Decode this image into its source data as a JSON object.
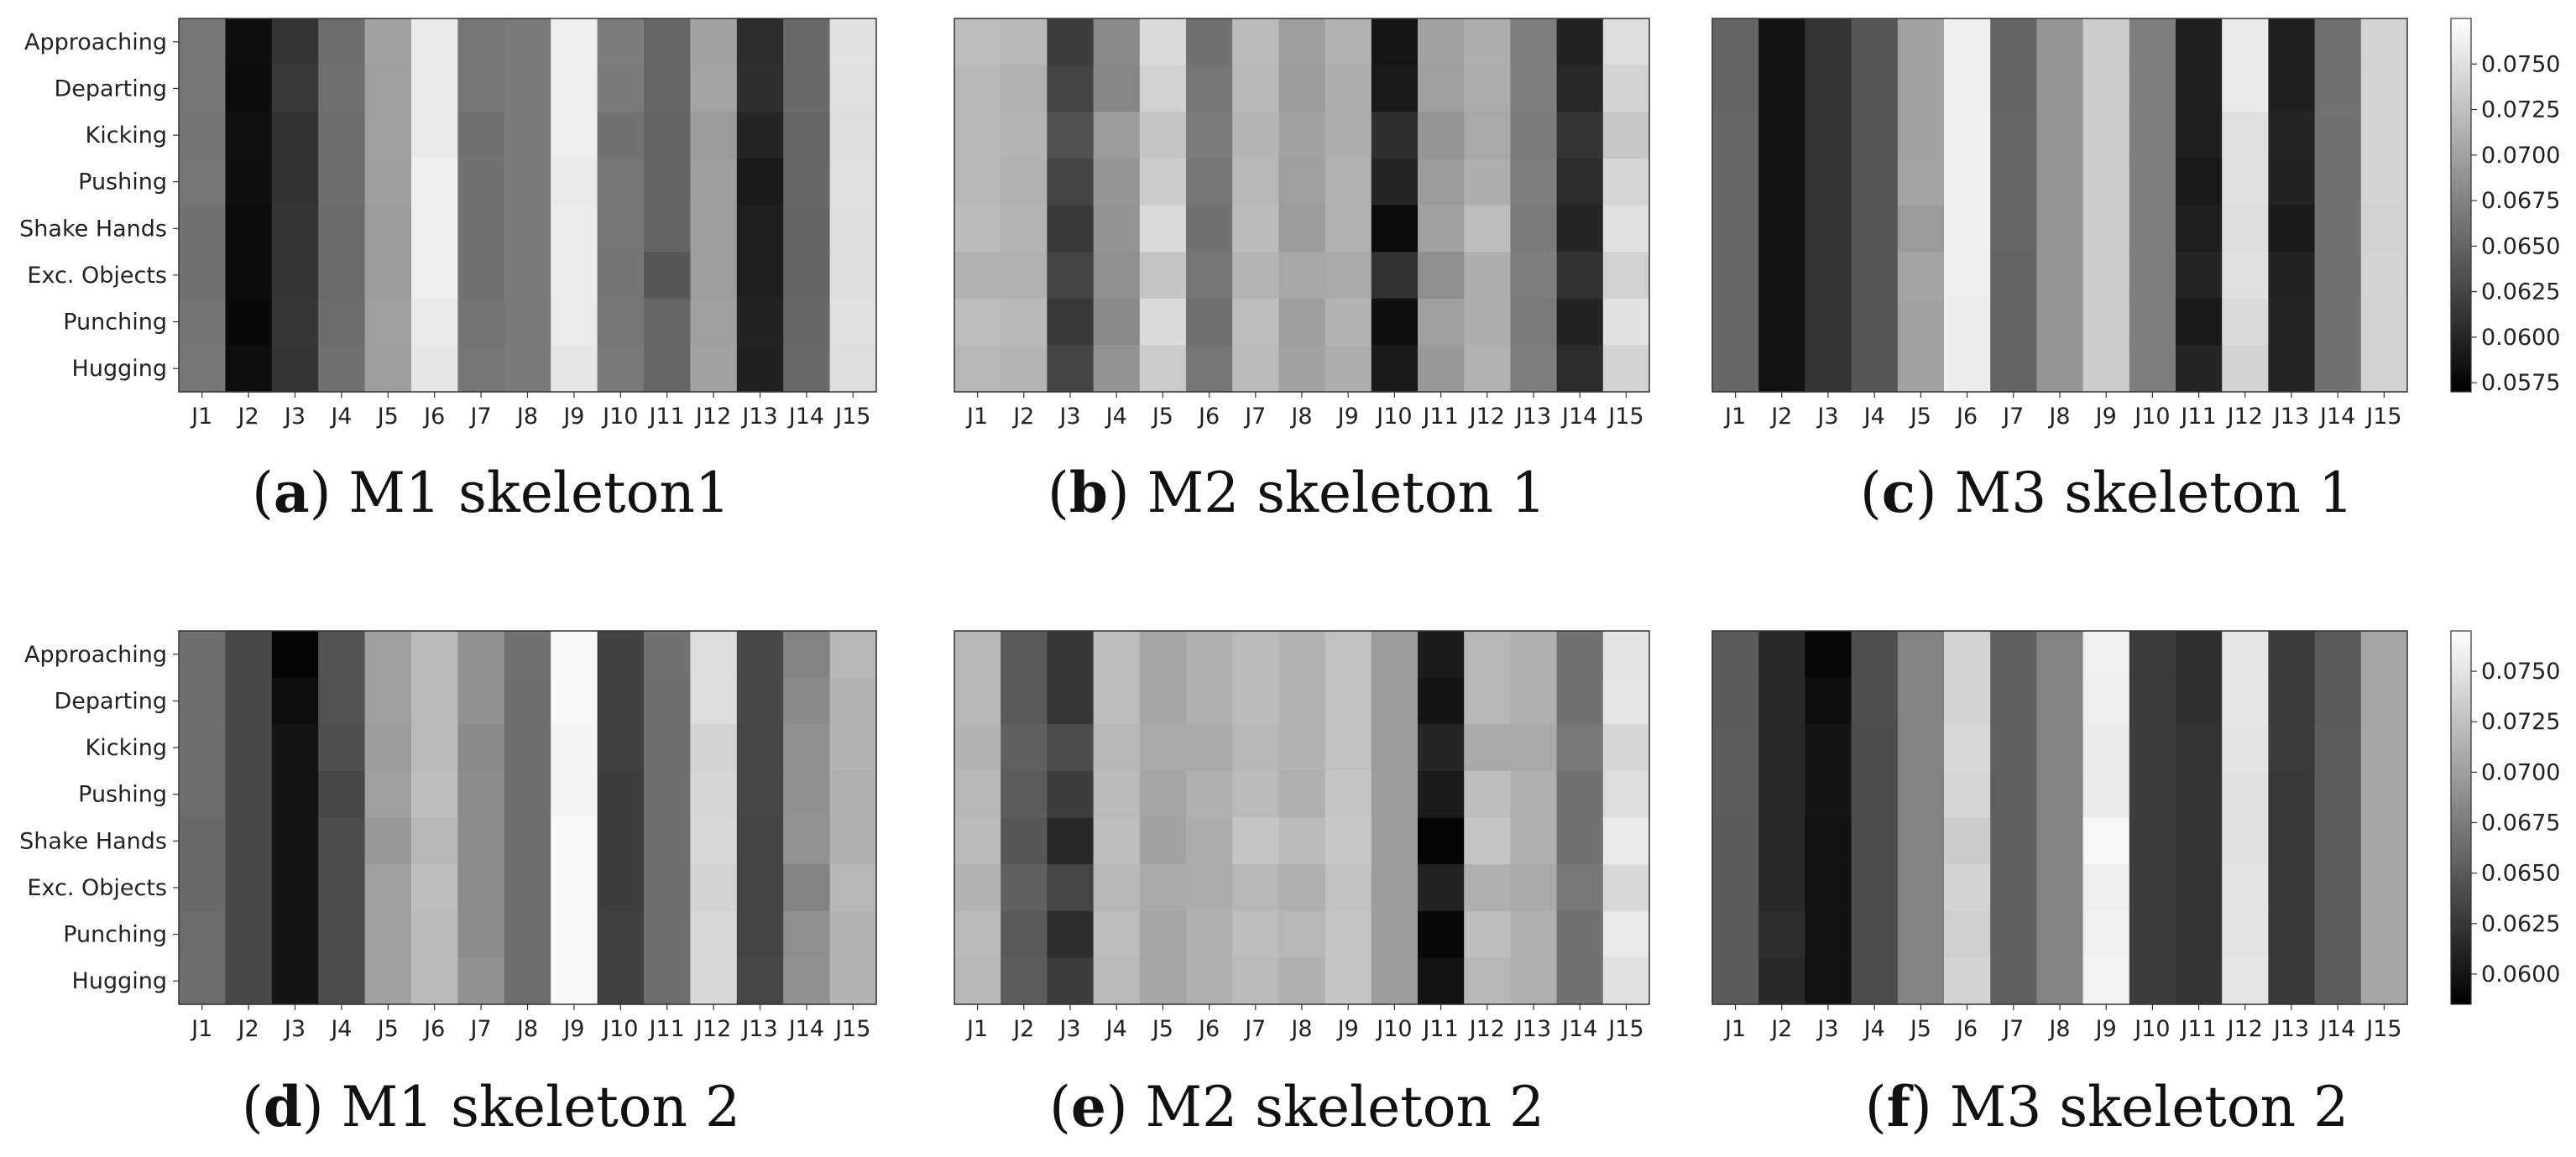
{
  "colors": {
    "colormap_low": "#000000",
    "colormap_high": "#ffffff",
    "frame": "#333333",
    "text": "#222222"
  },
  "chart_data": [
    {
      "type": "heatmap",
      "panel_letter": "a",
      "caption": "M1 skeleton1",
      "rows": [
        "Approaching",
        "Departing",
        "Kicking",
        "Pushing",
        "Shake Hands",
        "Exc. Objects",
        "Punching",
        "Hugging"
      ],
      "cols": [
        "J1",
        "J2",
        "J3",
        "J4",
        "J5",
        "J6",
        "J7",
        "J8",
        "J9",
        "J10",
        "J11",
        "J12",
        "J13",
        "J14",
        "J15"
      ],
      "values": [
        [
          0.0665,
          0.0582,
          0.0612,
          0.0658,
          0.07,
          0.0758,
          0.0665,
          0.0668,
          0.0762,
          0.067,
          0.0652,
          0.07,
          0.0605,
          0.0655,
          0.0752
        ],
        [
          0.0665,
          0.058,
          0.0615,
          0.066,
          0.0698,
          0.0757,
          0.0665,
          0.0668,
          0.0761,
          0.0668,
          0.0652,
          0.0702,
          0.0607,
          0.0655,
          0.075
        ],
        [
          0.0663,
          0.0583,
          0.061,
          0.0658,
          0.0698,
          0.0757,
          0.066,
          0.0668,
          0.0761,
          0.0662,
          0.0651,
          0.0695,
          0.06,
          0.0652,
          0.0748
        ],
        [
          0.0665,
          0.0582,
          0.061,
          0.0658,
          0.0697,
          0.0762,
          0.0662,
          0.0668,
          0.0758,
          0.0666,
          0.065,
          0.0697,
          0.059,
          0.0652,
          0.075
        ],
        [
          0.0662,
          0.058,
          0.0612,
          0.0656,
          0.0695,
          0.0762,
          0.0662,
          0.0668,
          0.076,
          0.0665,
          0.0651,
          0.0696,
          0.0595,
          0.0651,
          0.0749
        ],
        [
          0.0662,
          0.058,
          0.0612,
          0.0656,
          0.0695,
          0.0762,
          0.0662,
          0.0668,
          0.076,
          0.0664,
          0.064,
          0.0696,
          0.0595,
          0.0651,
          0.0749
        ],
        [
          0.0664,
          0.0578,
          0.0614,
          0.0657,
          0.0698,
          0.0757,
          0.0663,
          0.0667,
          0.0759,
          0.0665,
          0.0652,
          0.0698,
          0.0598,
          0.0652,
          0.0751
        ],
        [
          0.0666,
          0.0582,
          0.0612,
          0.066,
          0.0697,
          0.0755,
          0.0665,
          0.0668,
          0.0754,
          0.0667,
          0.0652,
          0.07,
          0.0596,
          0.0655,
          0.0748
        ]
      ],
      "colorbar": {
        "visible": false
      }
    },
    {
      "type": "heatmap",
      "panel_letter": "b",
      "caption": "M2 skeleton 1",
      "rows": [
        "Approaching",
        "Departing",
        "Kicking",
        "Pushing",
        "Shake Hands",
        "Exc. Objects",
        "Punching",
        "Hugging"
      ],
      "cols": [
        "J1",
        "J2",
        "J3",
        "J4",
        "J5",
        "J6",
        "J7",
        "J8",
        "J9",
        "J10",
        "J11",
        "J12",
        "J13",
        "J14",
        "J15"
      ],
      "values": [
        [
          0.0722,
          0.0718,
          0.062,
          0.068,
          0.0745,
          0.0662,
          0.072,
          0.0697,
          0.0714,
          0.0588,
          0.07,
          0.071,
          0.0672,
          0.0598,
          0.0748
        ],
        [
          0.0718,
          0.0712,
          0.0625,
          0.0678,
          0.0738,
          0.0665,
          0.0718,
          0.0695,
          0.071,
          0.059,
          0.0698,
          0.0708,
          0.0672,
          0.0602,
          0.074
        ],
        [
          0.0718,
          0.0715,
          0.0635,
          0.0695,
          0.0728,
          0.067,
          0.0715,
          0.07,
          0.071,
          0.0608,
          0.069,
          0.0705,
          0.067,
          0.0612,
          0.073
        ],
        [
          0.0718,
          0.0712,
          0.0625,
          0.069,
          0.0735,
          0.0665,
          0.0717,
          0.0698,
          0.0712,
          0.06,
          0.0695,
          0.071,
          0.0672,
          0.0605,
          0.0742
        ],
        [
          0.072,
          0.0715,
          0.0615,
          0.0688,
          0.0745,
          0.0662,
          0.072,
          0.0695,
          0.0712,
          0.058,
          0.07,
          0.0722,
          0.067,
          0.06,
          0.075
        ],
        [
          0.0712,
          0.0712,
          0.0625,
          0.0685,
          0.0728,
          0.0665,
          0.0715,
          0.0704,
          0.0706,
          0.061,
          0.0685,
          0.071,
          0.0672,
          0.061,
          0.0738
        ],
        [
          0.0722,
          0.0718,
          0.0615,
          0.068,
          0.0745,
          0.066,
          0.0722,
          0.0697,
          0.0714,
          0.0582,
          0.0698,
          0.071,
          0.067,
          0.0598,
          0.0752
        ],
        [
          0.0718,
          0.0715,
          0.0625,
          0.0688,
          0.0732,
          0.0665,
          0.072,
          0.07,
          0.071,
          0.0592,
          0.0692,
          0.0712,
          0.0672,
          0.0605,
          0.074
        ]
      ],
      "colorbar": {
        "visible": false
      }
    },
    {
      "type": "heatmap",
      "panel_letter": "c",
      "caption": "M3 skeleton 1",
      "rows": [
        "Approaching",
        "Departing",
        "Kicking",
        "Pushing",
        "Shake Hands",
        "Exc. Objects",
        "Punching",
        "Hugging"
      ],
      "cols": [
        "J1",
        "J2",
        "J3",
        "J4",
        "J5",
        "J6",
        "J7",
        "J8",
        "J9",
        "J10",
        "J11",
        "J12",
        "J13",
        "J14",
        "J15"
      ],
      "values": [
        [
          0.065,
          0.0585,
          0.0612,
          0.064,
          0.07,
          0.0762,
          0.065,
          0.069,
          0.0735,
          0.0672,
          0.0595,
          0.0758,
          0.0595,
          0.066,
          0.074
        ],
        [
          0.065,
          0.0585,
          0.0612,
          0.064,
          0.07,
          0.0762,
          0.065,
          0.069,
          0.0735,
          0.0672,
          0.0595,
          0.0758,
          0.0595,
          0.066,
          0.074
        ],
        [
          0.0652,
          0.0585,
          0.0612,
          0.064,
          0.07,
          0.0762,
          0.0652,
          0.069,
          0.0735,
          0.0672,
          0.0595,
          0.075,
          0.06,
          0.0662,
          0.074
        ],
        [
          0.0652,
          0.0585,
          0.0612,
          0.064,
          0.0702,
          0.0762,
          0.0652,
          0.069,
          0.0735,
          0.0672,
          0.059,
          0.075,
          0.0598,
          0.0662,
          0.074
        ],
        [
          0.0652,
          0.0585,
          0.0612,
          0.064,
          0.0695,
          0.0762,
          0.0652,
          0.069,
          0.0735,
          0.0672,
          0.0595,
          0.0748,
          0.0592,
          0.0662,
          0.0738
        ],
        [
          0.0652,
          0.0585,
          0.0612,
          0.064,
          0.0702,
          0.0762,
          0.065,
          0.069,
          0.0735,
          0.0672,
          0.06,
          0.075,
          0.0598,
          0.0662,
          0.074
        ],
        [
          0.0652,
          0.0585,
          0.0612,
          0.064,
          0.07,
          0.076,
          0.065,
          0.069,
          0.0735,
          0.0672,
          0.059,
          0.0745,
          0.06,
          0.0662,
          0.0738
        ],
        [
          0.0652,
          0.0585,
          0.0612,
          0.064,
          0.07,
          0.076,
          0.065,
          0.069,
          0.0735,
          0.0672,
          0.06,
          0.074,
          0.06,
          0.0662,
          0.0738
        ]
      ],
      "colorbar": {
        "visible": true,
        "min": 0.057,
        "max": 0.0775,
        "ticks": [
          "0.0575",
          "0.0600",
          "0.0625",
          "0.0650",
          "0.0675",
          "0.0700",
          "0.0725",
          "0.0750"
        ]
      }
    },
    {
      "type": "heatmap",
      "panel_letter": "d",
      "caption": "M1 skeleton 2",
      "rows": [
        "Approaching",
        "Departing",
        "Kicking",
        "Pushing",
        "Shake Hands",
        "Exc. Objects",
        "Punching",
        "Hugging"
      ],
      "cols": [
        "J1",
        "J2",
        "J3",
        "J4",
        "J5",
        "J6",
        "J7",
        "J8",
        "J9",
        "J10",
        "J11",
        "J12",
        "J13",
        "J14",
        "J15"
      ],
      "values": [
        [
          0.0665,
          0.0638,
          0.0588,
          0.0645,
          0.07,
          0.072,
          0.069,
          0.0668,
          0.0765,
          0.0632,
          0.0668,
          0.0745,
          0.0638,
          0.068,
          0.0718
        ],
        [
          0.0665,
          0.0638,
          0.0595,
          0.0645,
          0.07,
          0.072,
          0.069,
          0.0665,
          0.0765,
          0.0632,
          0.0665,
          0.0745,
          0.0638,
          0.0685,
          0.0715
        ],
        [
          0.0665,
          0.0638,
          0.06,
          0.0642,
          0.0698,
          0.072,
          0.0685,
          0.0665,
          0.0762,
          0.0632,
          0.0665,
          0.0738,
          0.0636,
          0.069,
          0.0715
        ],
        [
          0.0665,
          0.0638,
          0.06,
          0.0636,
          0.07,
          0.0722,
          0.0686,
          0.0665,
          0.0762,
          0.063,
          0.0665,
          0.074,
          0.0635,
          0.069,
          0.0712
        ],
        [
          0.0662,
          0.0638,
          0.06,
          0.064,
          0.0695,
          0.0718,
          0.0686,
          0.0665,
          0.0765,
          0.063,
          0.0665,
          0.0742,
          0.0634,
          0.0692,
          0.0712
        ],
        [
          0.0662,
          0.0638,
          0.06,
          0.064,
          0.07,
          0.0722,
          0.0686,
          0.0665,
          0.0765,
          0.063,
          0.0665,
          0.0738,
          0.0634,
          0.068,
          0.0718
        ],
        [
          0.0664,
          0.0638,
          0.06,
          0.064,
          0.07,
          0.072,
          0.0686,
          0.0665,
          0.0765,
          0.0632,
          0.0665,
          0.0742,
          0.0634,
          0.0688,
          0.0715
        ],
        [
          0.0665,
          0.0638,
          0.06,
          0.064,
          0.07,
          0.072,
          0.069,
          0.0665,
          0.0765,
          0.0632,
          0.0665,
          0.0742,
          0.0636,
          0.069,
          0.0715
        ]
      ],
      "colorbar": {
        "visible": false
      }
    },
    {
      "type": "heatmap",
      "panel_letter": "e",
      "caption": "M2 skeleton 2",
      "rows": [
        "Approaching",
        "Departing",
        "Kicking",
        "Pushing",
        "Shake Hands",
        "Exc. Objects",
        "Punching",
        "Hugging"
      ],
      "cols": [
        "J1",
        "J2",
        "J3",
        "J4",
        "J5",
        "J6",
        "J7",
        "J8",
        "J9",
        "J10",
        "J11",
        "J12",
        "J13",
        "J14",
        "J15"
      ],
      "values": [
        [
          0.0718,
          0.065,
          0.0625,
          0.0722,
          0.0705,
          0.0712,
          0.072,
          0.0715,
          0.0725,
          0.0698,
          0.0605,
          0.0718,
          0.0712,
          0.0668,
          0.075
        ],
        [
          0.0718,
          0.065,
          0.0625,
          0.0722,
          0.0705,
          0.0712,
          0.072,
          0.0715,
          0.0725,
          0.0698,
          0.06,
          0.0718,
          0.0712,
          0.0668,
          0.0752
        ],
        [
          0.0715,
          0.0655,
          0.064,
          0.0718,
          0.0708,
          0.0708,
          0.0718,
          0.0715,
          0.0725,
          0.0698,
          0.0612,
          0.0708,
          0.0708,
          0.0672,
          0.074
        ],
        [
          0.0718,
          0.0652,
          0.063,
          0.072,
          0.0705,
          0.0712,
          0.072,
          0.0712,
          0.0728,
          0.0698,
          0.0605,
          0.0722,
          0.0712,
          0.0668,
          0.0745
        ],
        [
          0.072,
          0.0648,
          0.0615,
          0.0722,
          0.0702,
          0.071,
          0.0728,
          0.072,
          0.073,
          0.0698,
          0.0588,
          0.0728,
          0.0712,
          0.0668,
          0.0755
        ],
        [
          0.0715,
          0.0655,
          0.0635,
          0.0718,
          0.0708,
          0.071,
          0.0718,
          0.0712,
          0.0725,
          0.0698,
          0.061,
          0.0712,
          0.0708,
          0.0672,
          0.0742
        ],
        [
          0.072,
          0.065,
          0.0618,
          0.0722,
          0.0705,
          0.0712,
          0.0722,
          0.0718,
          0.0728,
          0.0698,
          0.059,
          0.0722,
          0.0712,
          0.0668,
          0.0755
        ],
        [
          0.0718,
          0.0652,
          0.063,
          0.072,
          0.0705,
          0.0712,
          0.072,
          0.0712,
          0.0728,
          0.0698,
          0.0598,
          0.0718,
          0.0712,
          0.0668,
          0.0748
        ]
      ],
      "colorbar": {
        "visible": false
      }
    },
    {
      "type": "heatmap",
      "panel_letter": "f",
      "caption": "M3 skeleton 2",
      "rows": [
        "Approaching",
        "Departing",
        "Kicking",
        "Pushing",
        "Shake Hands",
        "Exc. Objects",
        "Punching",
        "Hugging"
      ],
      "cols": [
        "J1",
        "J2",
        "J3",
        "J4",
        "J5",
        "J6",
        "J7",
        "J8",
        "J9",
        "J10",
        "J11",
        "J12",
        "J13",
        "J14",
        "J15"
      ],
      "values": [
        [
          0.065,
          0.0615,
          0.059,
          0.0642,
          0.068,
          0.0738,
          0.0655,
          0.068,
          0.076,
          0.0628,
          0.062,
          0.0752,
          0.0628,
          0.065,
          0.0705
        ],
        [
          0.065,
          0.0615,
          0.0595,
          0.0642,
          0.068,
          0.0738,
          0.0655,
          0.068,
          0.0758,
          0.0628,
          0.062,
          0.0752,
          0.0628,
          0.065,
          0.0705
        ],
        [
          0.0652,
          0.0615,
          0.06,
          0.064,
          0.068,
          0.0742,
          0.0655,
          0.068,
          0.0755,
          0.063,
          0.0622,
          0.075,
          0.0628,
          0.0652,
          0.0705
        ],
        [
          0.0652,
          0.0615,
          0.06,
          0.064,
          0.068,
          0.074,
          0.0655,
          0.068,
          0.0755,
          0.063,
          0.0622,
          0.0748,
          0.0626,
          0.0652,
          0.0705
        ],
        [
          0.065,
          0.0615,
          0.0598,
          0.064,
          0.068,
          0.0732,
          0.0655,
          0.068,
          0.0765,
          0.063,
          0.0622,
          0.0748,
          0.0626,
          0.0652,
          0.0705
        ],
        [
          0.065,
          0.0615,
          0.0598,
          0.064,
          0.068,
          0.0738,
          0.0655,
          0.068,
          0.0758,
          0.063,
          0.0622,
          0.075,
          0.0626,
          0.0652,
          0.0705
        ],
        [
          0.065,
          0.0618,
          0.0598,
          0.064,
          0.068,
          0.0735,
          0.0655,
          0.068,
          0.076,
          0.063,
          0.0622,
          0.075,
          0.0626,
          0.0652,
          0.0705
        ],
        [
          0.065,
          0.0615,
          0.0598,
          0.064,
          0.068,
          0.0738,
          0.0655,
          0.068,
          0.0762,
          0.063,
          0.0622,
          0.0752,
          0.0626,
          0.0652,
          0.0705
        ]
      ],
      "colorbar": {
        "visible": true,
        "min": 0.0585,
        "max": 0.077,
        "ticks": [
          "0.0600",
          "0.0625",
          "0.0650",
          "0.0675",
          "0.0700",
          "0.0725",
          "0.0750"
        ]
      }
    }
  ]
}
